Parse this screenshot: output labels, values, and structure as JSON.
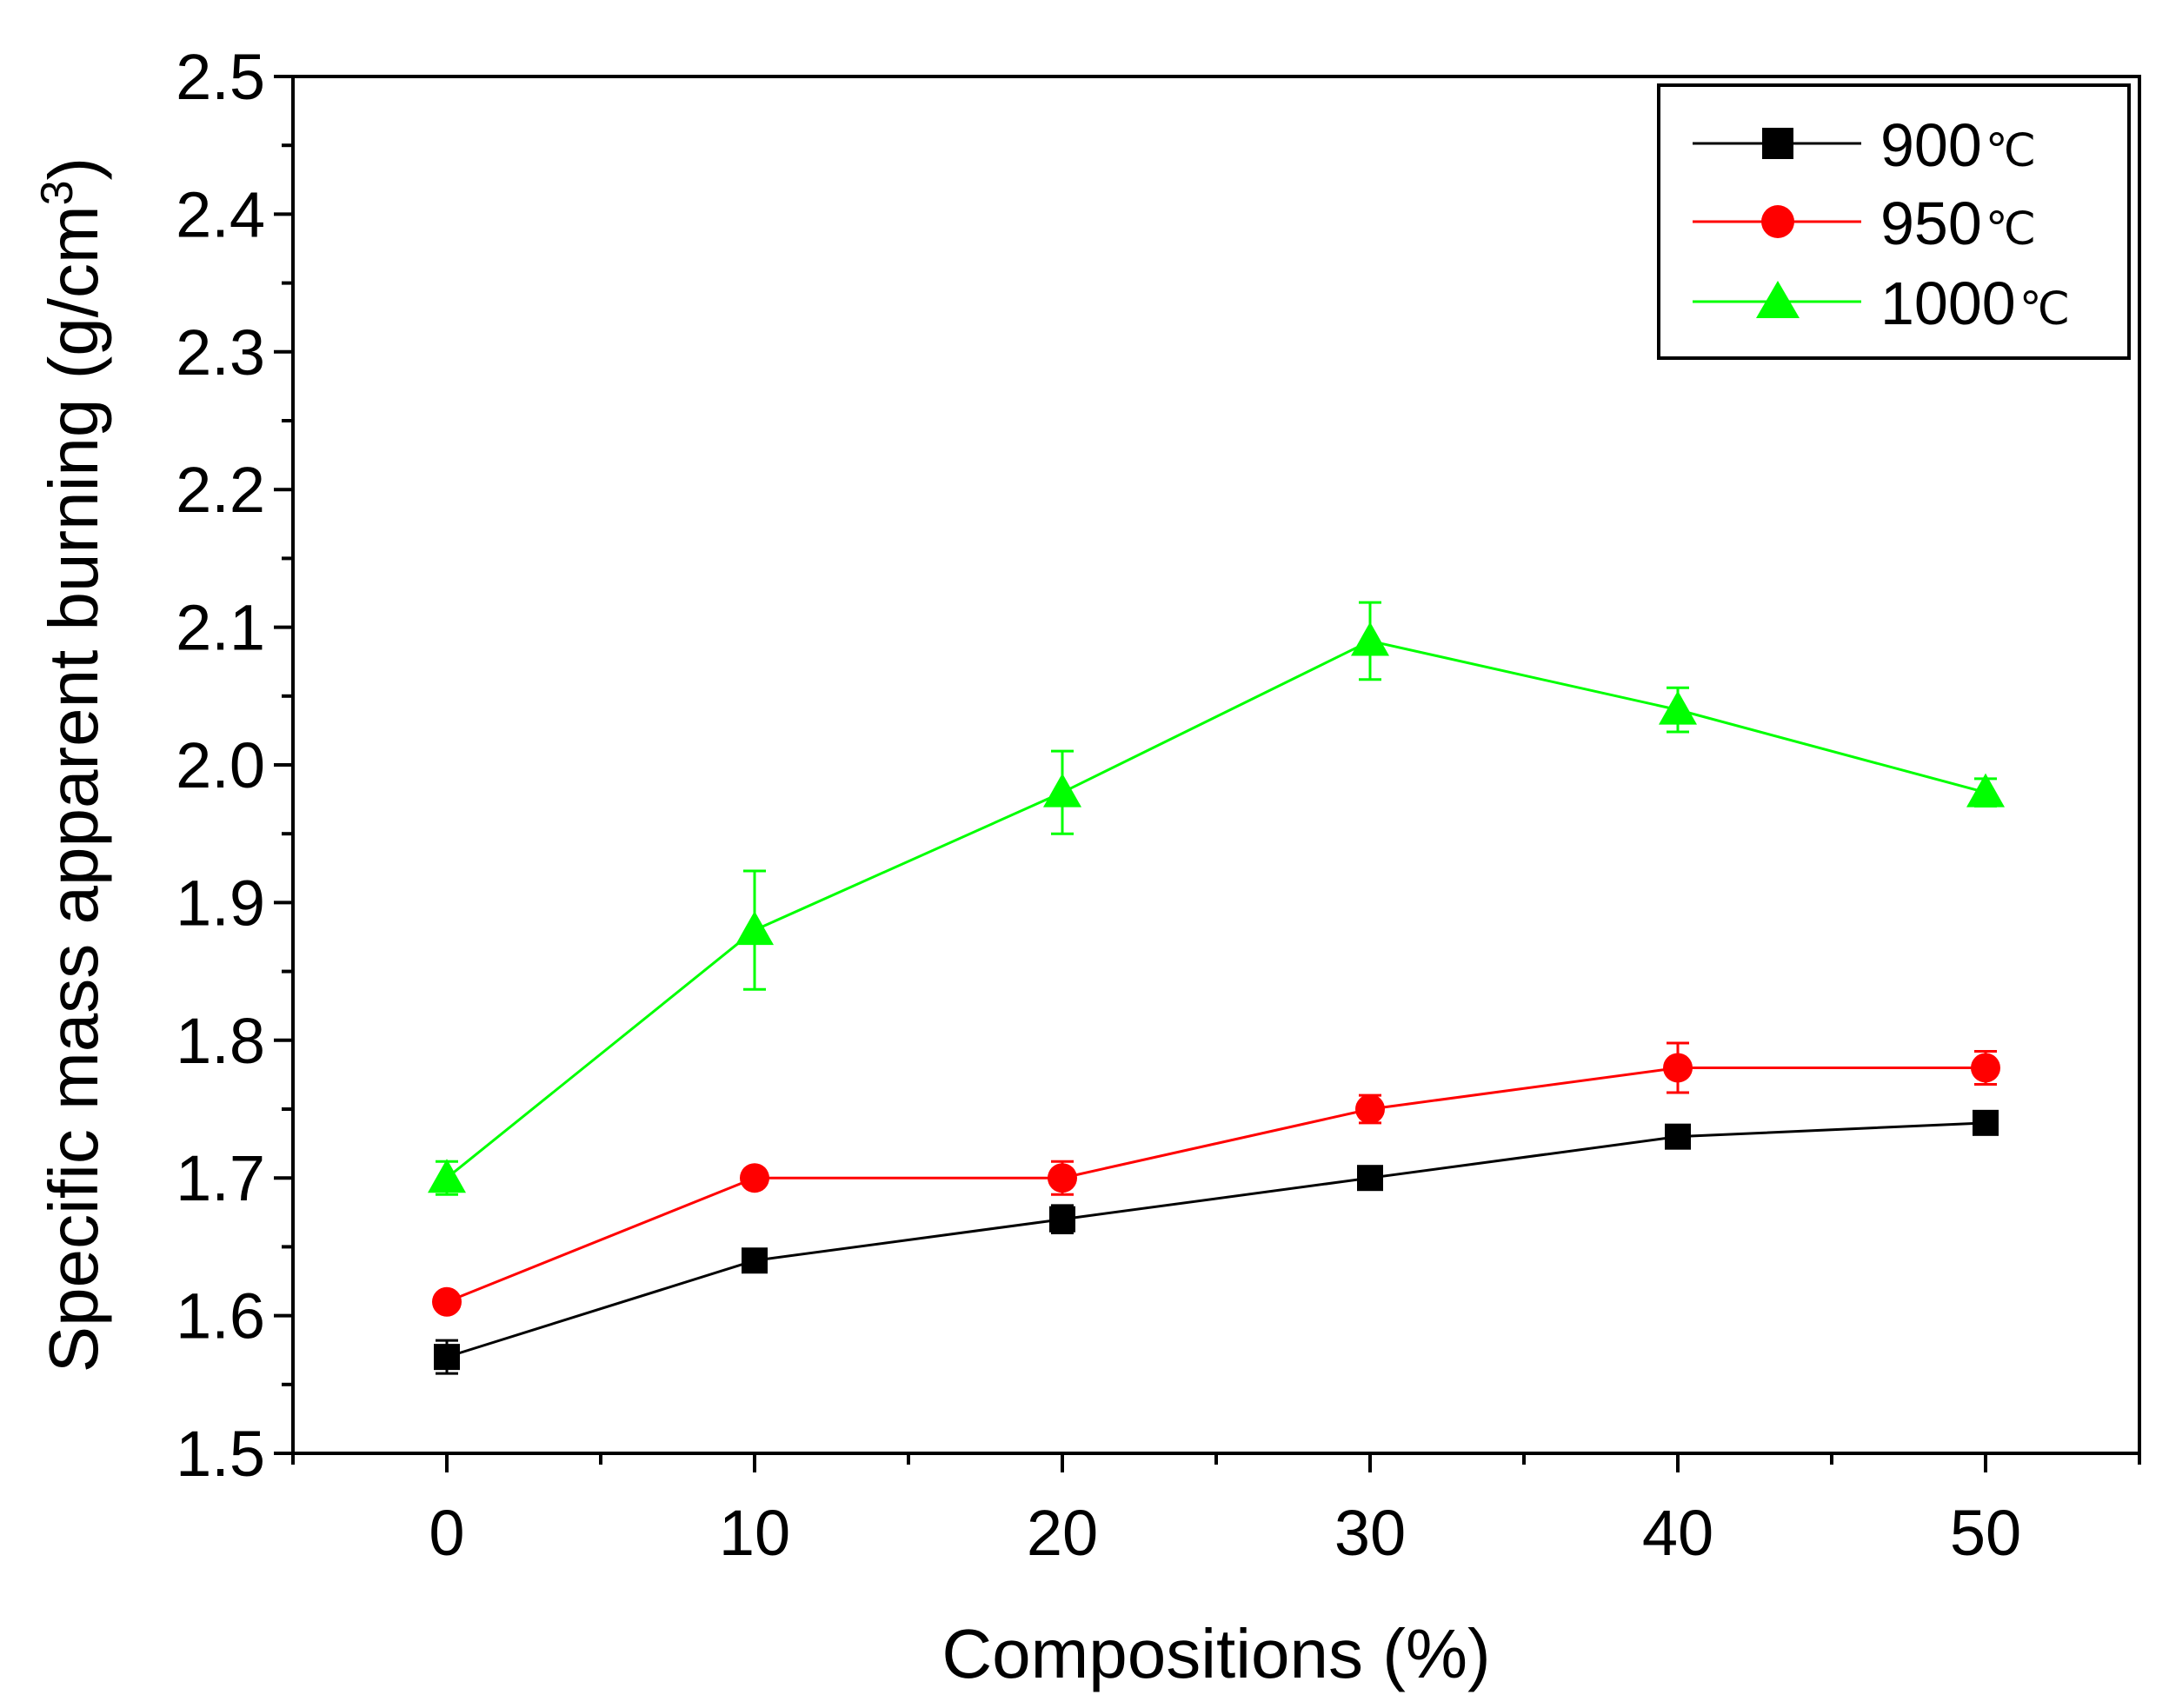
{
  "chart_data": {
    "type": "line",
    "title": "",
    "xlabel": "Compositions (%)",
    "ylabel_main": "Specific mass apparent burning (g/cm",
    "ylabel_sup": "3",
    "ylabel_end": ")",
    "ylabel": "Specific mass apparent burning (g/cm3)",
    "x": [
      0,
      10,
      20,
      30,
      40,
      50
    ],
    "xlim": [
      -5,
      55
    ],
    "ylim": [
      1.5,
      2.5
    ],
    "xticks": [
      0,
      10,
      20,
      30,
      40,
      50
    ],
    "xtick_labels": [
      "0",
      "10",
      "20",
      "30",
      "40",
      "50"
    ],
    "yticks": [
      1.5,
      1.6,
      1.7,
      1.8,
      1.9,
      2.0,
      2.1,
      2.2,
      2.3,
      2.4,
      2.5
    ],
    "ytick_labels": [
      "1.5",
      "1.6",
      "1.7",
      "1.8",
      "1.9",
      "2.0",
      "2.1",
      "2.2",
      "2.3",
      "2.4",
      "2.5"
    ],
    "grid": false,
    "legend_position": "top-right",
    "series": [
      {
        "name": "900",
        "unit": "℃",
        "color": "#000000",
        "marker": "square",
        "values": [
          1.57,
          1.64,
          1.67,
          1.7,
          1.73,
          1.74
        ],
        "errors": [
          0.012,
          0.008,
          0.01,
          0.008,
          0.006,
          0.006
        ]
      },
      {
        "name": "950",
        "unit": "℃",
        "color": "#ff0000",
        "marker": "circle",
        "values": [
          1.61,
          1.7,
          1.7,
          1.75,
          1.78,
          1.78
        ],
        "errors": [
          0.005,
          0.005,
          0.012,
          0.01,
          0.018,
          0.012
        ]
      },
      {
        "name": "1000",
        "unit": "℃",
        "color": "#00ff00",
        "marker": "triangle",
        "values": [
          1.7,
          1.88,
          1.98,
          2.09,
          2.04,
          1.98
        ],
        "errors": [
          0.012,
          0.043,
          0.03,
          0.028,
          0.016,
          0.01
        ]
      }
    ]
  }
}
